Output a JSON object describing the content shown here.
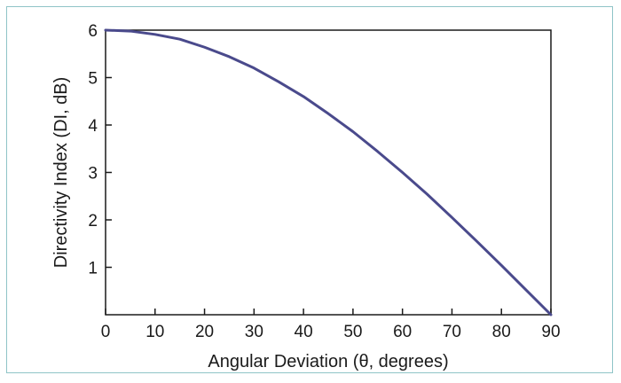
{
  "chart_data": {
    "type": "line",
    "title": "",
    "xlabel": "Angular Deviation (θ, degrees)",
    "ylabel": "Directivity Index (DI, dB)",
    "xlim": [
      0,
      90
    ],
    "ylim": [
      0,
      6
    ],
    "x_ticks": [
      "0",
      "10",
      "20",
      "30",
      "40",
      "50",
      "60",
      "70",
      "80",
      "90"
    ],
    "y_ticks": [
      "1",
      "2",
      "3",
      "4",
      "5",
      "6"
    ],
    "grid": false,
    "legend": "none",
    "series": [
      {
        "color": "#4a4a8c",
        "x": [
          0,
          5,
          10,
          15,
          20,
          25,
          30,
          35,
          40,
          45,
          50,
          55,
          60,
          65,
          70,
          75,
          80,
          85,
          90
        ],
        "y": [
          6.0,
          5.98,
          5.91,
          5.81,
          5.64,
          5.44,
          5.2,
          4.91,
          4.6,
          4.24,
          3.86,
          3.44,
          3.0,
          2.54,
          2.05,
          1.55,
          1.04,
          0.52,
          0.0
        ]
      }
    ]
  }
}
